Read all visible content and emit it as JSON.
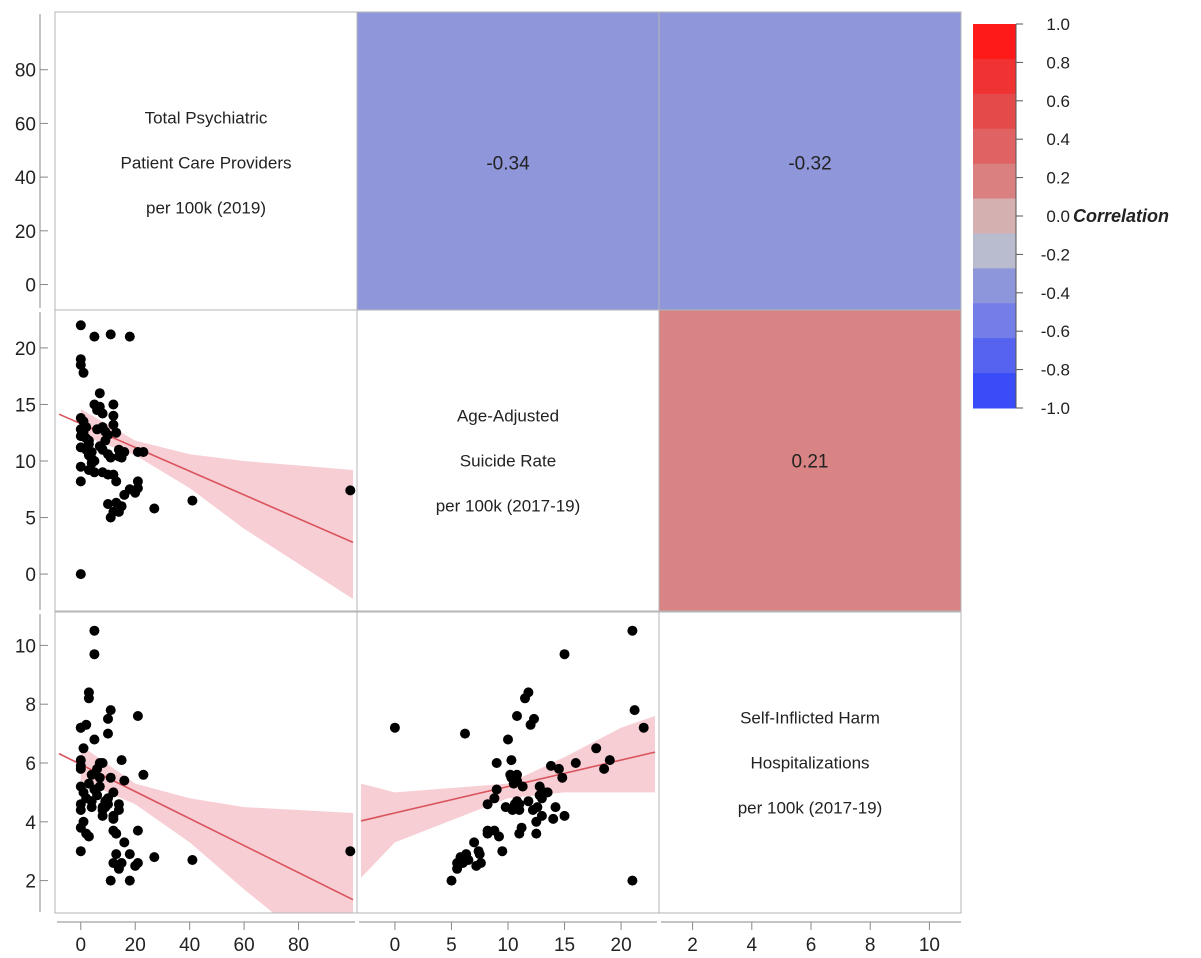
{
  "chart_data": {
    "type": "scatter",
    "variables": [
      {
        "id": "providers",
        "label_lines": [
          "Total Psychiatric",
          "Patient Care Providers",
          "per 100k (2019)"
        ]
      },
      {
        "id": "suicide",
        "label_lines": [
          "Age-Adjusted",
          "Suicide Rate",
          "per 100k (2017-19)"
        ]
      },
      {
        "id": "harm",
        "label_lines": [
          "Self-Inflicted Harm",
          "Hospitalizations",
          "per 100k (2017-19)"
        ]
      }
    ],
    "axes": {
      "providers": {
        "range": [
          -8,
          100
        ],
        "ticks": [
          0,
          20,
          40,
          60,
          80
        ],
        "tick_labels": [
          "0",
          "20",
          "40",
          "60",
          "80"
        ]
      },
      "suicide": {
        "range": [
          -3,
          23
        ],
        "ticks": [
          0,
          5,
          10,
          15,
          20
        ],
        "tick_labels": [
          "0",
          "5",
          "10",
          "15",
          "20"
        ]
      },
      "harm": {
        "range": [
          1,
          11
        ],
        "ticks": [
          2,
          4,
          6,
          8,
          10
        ],
        "tick_labels": [
          "2",
          "4",
          "6",
          "8",
          "10"
        ]
      },
      "suicide_bottom": {
        "range": [
          -3,
          23
        ],
        "ticks": [
          0,
          5,
          10,
          15,
          20
        ],
        "tick_labels": [
          "0",
          "5",
          "10",
          "15",
          "20"
        ]
      },
      "harm_bottom": {
        "range": [
          1,
          11
        ],
        "ticks": [
          2,
          4,
          6,
          8,
          10
        ],
        "tick_labels": [
          "2",
          "4",
          "6",
          "8",
          "10"
        ]
      }
    },
    "correlations": [
      {
        "row": "providers",
        "col": "suicide",
        "value": -0.34,
        "label": "-0.34"
      },
      {
        "row": "providers",
        "col": "harm",
        "value": -0.32,
        "label": "-0.32"
      },
      {
        "row": "suicide",
        "col": "harm",
        "value": 0.21,
        "label": "0.21"
      }
    ],
    "color_legend": {
      "title": "Correlation",
      "ticks": [
        "1.0",
        "0.8",
        "0.6",
        "0.4",
        "0.2",
        "0.0",
        "-0.2",
        "-0.4",
        "-0.6",
        "-0.8",
        "-1.0"
      ],
      "colors": [
        "#ff1a1a",
        "#f03232",
        "#e44a4a",
        "#e06262",
        "#db8080",
        "#d4b0b0",
        "#b9bccf",
        "#8e96db",
        "#737ee8",
        "#5563f0",
        "#3a4cf8"
      ]
    },
    "point_color": "#000000",
    "fit_line_color": "#d9545c",
    "fit_band_color": "#f6c5cd",
    "fits": {
      "suicide_vs_providers": {
        "intercept": 13.3,
        "slope": -0.105,
        "band": [
          [
            0,
            12.3,
            14.6
          ],
          [
            20,
            10.5,
            11.8
          ],
          [
            40,
            7.6,
            10.6
          ],
          [
            60,
            4.0,
            10.0
          ],
          [
            80,
            0.9,
            9.6
          ],
          [
            100,
            -2.2,
            9.2
          ]
        ]
      },
      "harm_vs_providers": {
        "intercept": 5.95,
        "slope": -0.046,
        "band": [
          [
            0,
            5.4,
            6.6
          ],
          [
            20,
            4.6,
            5.3
          ],
          [
            40,
            3.3,
            4.8
          ],
          [
            60,
            1.7,
            4.5
          ],
          [
            80,
            0.2,
            4.4
          ],
          [
            100,
            -1.2,
            4.3
          ]
        ]
      },
      "harm_vs_suicide": {
        "intercept": 4.3,
        "slope": 0.09,
        "band": [
          [
            -3,
            2.1,
            5.3
          ],
          [
            0,
            3.3,
            5.0
          ],
          [
            10,
            4.8,
            5.3
          ],
          [
            15,
            5.0,
            6.2
          ],
          [
            20,
            5.0,
            7.2
          ],
          [
            23,
            5.0,
            7.6
          ]
        ]
      }
    },
    "points": [
      [
        0,
        22.0,
        7.2
      ],
      [
        0,
        19.0,
        6.1
      ],
      [
        0,
        18.5,
        5.8
      ],
      [
        1,
        17.8,
        6.5
      ],
      [
        0,
        13.8,
        5.9
      ],
      [
        1,
        13.5,
        5.0
      ],
      [
        2,
        13.0,
        4.8
      ],
      [
        0,
        12.8,
        5.2
      ],
      [
        1,
        12.5,
        4.0
      ],
      [
        0,
        12.2,
        4.4
      ],
      [
        2,
        12.0,
        7.3
      ],
      [
        3,
        11.8,
        8.4
      ],
      [
        3,
        11.5,
        8.2
      ],
      [
        0,
        11.2,
        3.8
      ],
      [
        2,
        11.0,
        3.6
      ],
      [
        4,
        10.8,
        4.7
      ],
      [
        3,
        10.5,
        5.3
      ],
      [
        4,
        10.2,
        5.6
      ],
      [
        5,
        10.0,
        6.8
      ],
      [
        4,
        9.8,
        4.5
      ],
      [
        0,
        9.5,
        3.0
      ],
      [
        3,
        9.2,
        3.5
      ],
      [
        5,
        9.0,
        5.1
      ],
      [
        0,
        8.2,
        4.6
      ],
      [
        5,
        21.0,
        10.5
      ],
      [
        5,
        15.0,
        9.7
      ],
      [
        6,
        14.5,
        5.8
      ],
      [
        7,
        16.0,
        6.0
      ],
      [
        7,
        14.8,
        5.5
      ],
      [
        8,
        14.2,
        4.5
      ],
      [
        8,
        13.0,
        4.2
      ],
      [
        6,
        12.8,
        4.9
      ],
      [
        9,
        12.6,
        4.5
      ],
      [
        10,
        12.3,
        7.5
      ],
      [
        9,
        11.8,
        4.7
      ],
      [
        7,
        11.3,
        5.2
      ],
      [
        8,
        11.0,
        4.4
      ],
      [
        10,
        10.6,
        4.6
      ],
      [
        11,
        10.3,
        5.5
      ],
      [
        8,
        9.0,
        6.0
      ],
      [
        10,
        8.8,
        4.8
      ],
      [
        10,
        6.2,
        7.0
      ],
      [
        11,
        21.2,
        7.8
      ],
      [
        12,
        15.0,
        4.2
      ],
      [
        12,
        14.0,
        4.1
      ],
      [
        12,
        13.2,
        5.0
      ],
      [
        13,
        12.5,
        3.6
      ],
      [
        14,
        11.0,
        4.6
      ],
      [
        14,
        10.4,
        4.4
      ],
      [
        16,
        10.8,
        5.4
      ],
      [
        15,
        10.3,
        6.1
      ],
      [
        12,
        8.8,
        3.7
      ],
      [
        13,
        8.2,
        3.6
      ],
      [
        13,
        6.3,
        2.9
      ],
      [
        14,
        5.5,
        2.4
      ],
      [
        15,
        6.0,
        2.6
      ],
      [
        11,
        5.0,
        2.0
      ],
      [
        12,
        5.5,
        2.6
      ],
      [
        16,
        7.0,
        3.3
      ],
      [
        18,
        7.5,
        2.9
      ],
      [
        20,
        7.2,
        2.5
      ],
      [
        21,
        8.2,
        3.7
      ],
      [
        21,
        10.8,
        7.6
      ],
      [
        23,
        10.8,
        5.6
      ],
      [
        21,
        7.6,
        2.6
      ],
      [
        27,
        5.8,
        2.8
      ],
      [
        41,
        6.5,
        2.7
      ],
      [
        99,
        7.4,
        3.0
      ],
      [
        0,
        0.0,
        7.2
      ],
      [
        18,
        21.0,
        2.0
      ]
    ]
  }
}
